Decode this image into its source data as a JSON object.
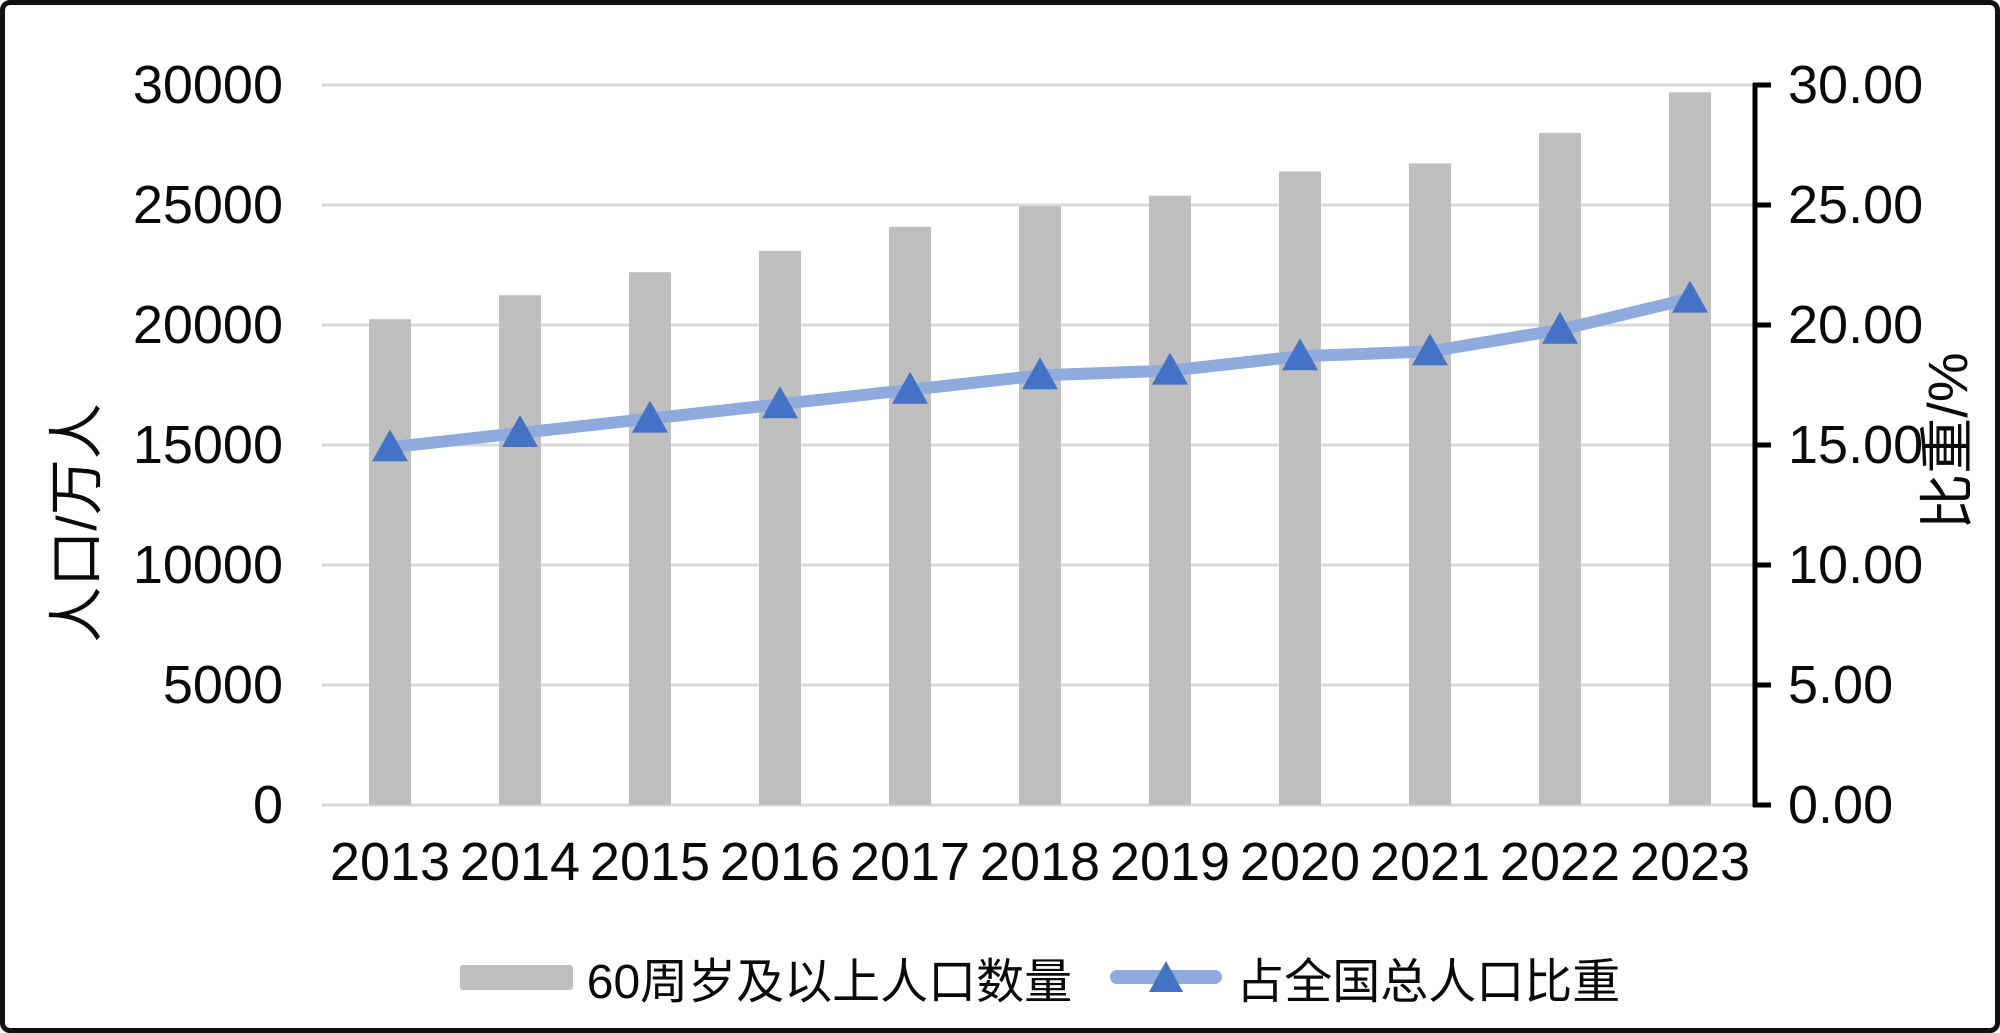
{
  "chart_data": {
    "type": "bar+line",
    "categories": [
      "2013",
      "2014",
      "2015",
      "2016",
      "2017",
      "2018",
      "2019",
      "2020",
      "2021",
      "2022",
      "2023"
    ],
    "series": [
      {
        "name": "60周岁及以上人口数量",
        "type": "bar",
        "axis": "left",
        "color": "#BFBFBF",
        "values": [
          20243,
          21242,
          22200,
          23086,
          24090,
          24949,
          25388,
          26402,
          26736,
          28004,
          29697
        ]
      },
      {
        "name": "占全国总人口比重",
        "type": "line",
        "axis": "right",
        "color": "#8FAADC",
        "marker": "triangle-up",
        "marker_color": "#4472C4",
        "values": [
          14.9,
          15.5,
          16.1,
          16.7,
          17.3,
          17.9,
          18.1,
          18.7,
          18.9,
          19.8,
          21.1
        ]
      }
    ],
    "left_axis": {
      "title": "人口/万人",
      "min": 0,
      "max": 30000,
      "ticks": [
        30000,
        25000,
        20000,
        15000,
        10000,
        5000,
        0
      ],
      "tick_labels": [
        "30000",
        "25000",
        "20000",
        "15000",
        "10000",
        "5000",
        "0"
      ]
    },
    "right_axis": {
      "title": "比重/%",
      "min": 0,
      "max": 30,
      "ticks": [
        30,
        25,
        20,
        15,
        10,
        5,
        0
      ],
      "tick_labels": [
        "30.00",
        "25.00",
        "20.00",
        "15.00",
        "10.00",
        "5.00",
        "0.00"
      ]
    },
    "grid": true,
    "gridline_color": "#D9D9D9",
    "axis_line_color": "#000000",
    "legend_position": "bottom"
  }
}
